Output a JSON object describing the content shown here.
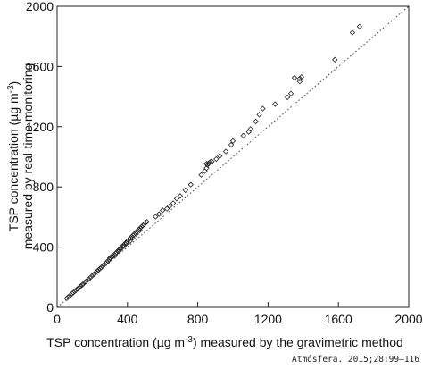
{
  "chart_data": {
    "type": "scatter",
    "xlabel": {
      "pre": "TSP concentration (µg m",
      "sup": "-3",
      "post": ") measured by the gravimetric method"
    },
    "ylabel": {
      "line1": {
        "pre": "TSP concentration (µg m",
        "sup": "-3",
        "post": ")"
      },
      "line2": "measured by real-time monitoring"
    },
    "xlim": [
      0,
      2000
    ],
    "ylim": [
      0,
      2000
    ],
    "xticks": [
      "0",
      "400",
      "800",
      "1200",
      "1600",
      "2000"
    ],
    "yticks": [
      "0",
      "400",
      "800",
      "1200",
      "1600",
      "2000"
    ],
    "reference_line": {
      "style": "dotted",
      "from": [
        0,
        0
      ],
      "to": [
        2000,
        2000
      ]
    },
    "grid": false,
    "marker": "open-diamond",
    "points": [
      [
        55,
        60
      ],
      [
        62,
        68
      ],
      [
        70,
        75
      ],
      [
        78,
        83
      ],
      [
        85,
        92
      ],
      [
        92,
        98
      ],
      [
        100,
        106
      ],
      [
        108,
        114
      ],
      [
        116,
        122
      ],
      [
        125,
        130
      ],
      [
        133,
        140
      ],
      [
        142,
        148
      ],
      [
        150,
        157
      ],
      [
        160,
        168
      ],
      [
        170,
        178
      ],
      [
        180,
        188
      ],
      [
        190,
        199
      ],
      [
        200,
        210
      ],
      [
        210,
        220
      ],
      [
        220,
        231
      ],
      [
        228,
        240
      ],
      [
        236,
        249
      ],
      [
        244,
        258
      ],
      [
        252,
        266
      ],
      [
        260,
        275
      ],
      [
        268,
        284
      ],
      [
        275,
        292
      ],
      [
        282,
        300
      ],
      [
        290,
        309
      ],
      [
        298,
        318
      ],
      [
        305,
        326
      ],
      [
        312,
        334
      ],
      [
        318,
        342
      ],
      [
        325,
        350
      ],
      [
        332,
        358
      ],
      [
        338,
        366
      ],
      [
        345,
        374
      ],
      [
        352,
        382
      ],
      [
        358,
        390
      ],
      [
        365,
        398
      ],
      [
        372,
        406
      ],
      [
        378,
        414
      ],
      [
        385,
        422
      ],
      [
        392,
        430
      ],
      [
        398,
        438
      ],
      [
        405,
        446
      ],
      [
        412,
        454
      ],
      [
        418,
        462
      ],
      [
        425,
        470
      ],
      [
        432,
        478
      ],
      [
        438,
        486
      ],
      [
        445,
        494
      ],
      [
        452,
        502
      ],
      [
        458,
        510
      ],
      [
        465,
        518
      ],
      [
        472,
        526
      ],
      [
        480,
        535
      ],
      [
        488,
        544
      ],
      [
        495,
        552
      ],
      [
        502,
        560
      ],
      [
        510,
        568
      ],
      [
        300,
        328
      ],
      [
        310,
        338
      ],
      [
        330,
        345
      ],
      [
        350,
        372
      ],
      [
        360,
        385
      ],
      [
        380,
        405
      ],
      [
        395,
        426
      ],
      [
        415,
        440
      ],
      [
        430,
        462
      ],
      [
        450,
        488
      ],
      [
        470,
        512
      ],
      [
        560,
        602
      ],
      [
        580,
        620
      ],
      [
        600,
        645
      ],
      [
        625,
        655
      ],
      [
        640,
        672
      ],
      [
        660,
        692
      ],
      [
        680,
        722
      ],
      [
        700,
        740
      ],
      [
        730,
        778
      ],
      [
        760,
        815
      ],
      [
        820,
        880
      ],
      [
        840,
        905
      ],
      [
        850,
        925
      ],
      [
        855,
        945
      ],
      [
        860,
        955
      ],
      [
        870,
        965
      ],
      [
        850,
        955
      ],
      [
        880,
        968
      ],
      [
        905,
        985
      ],
      [
        925,
        1005
      ],
      [
        960,
        1035
      ],
      [
        990,
        1080
      ],
      [
        1000,
        1105
      ],
      [
        1060,
        1140
      ],
      [
        1090,
        1165
      ],
      [
        1100,
        1185
      ],
      [
        1130,
        1235
      ],
      [
        1150,
        1280
      ],
      [
        1170,
        1320
      ],
      [
        1240,
        1350
      ],
      [
        1310,
        1395
      ],
      [
        1330,
        1420
      ],
      [
        1350,
        1525
      ],
      [
        1380,
        1500
      ],
      [
        1380,
        1520
      ],
      [
        1390,
        1530
      ],
      [
        1580,
        1645
      ],
      [
        1680,
        1825
      ],
      [
        1720,
        1865
      ]
    ]
  },
  "credit": "Atmósfera. 2015;28:99–116"
}
